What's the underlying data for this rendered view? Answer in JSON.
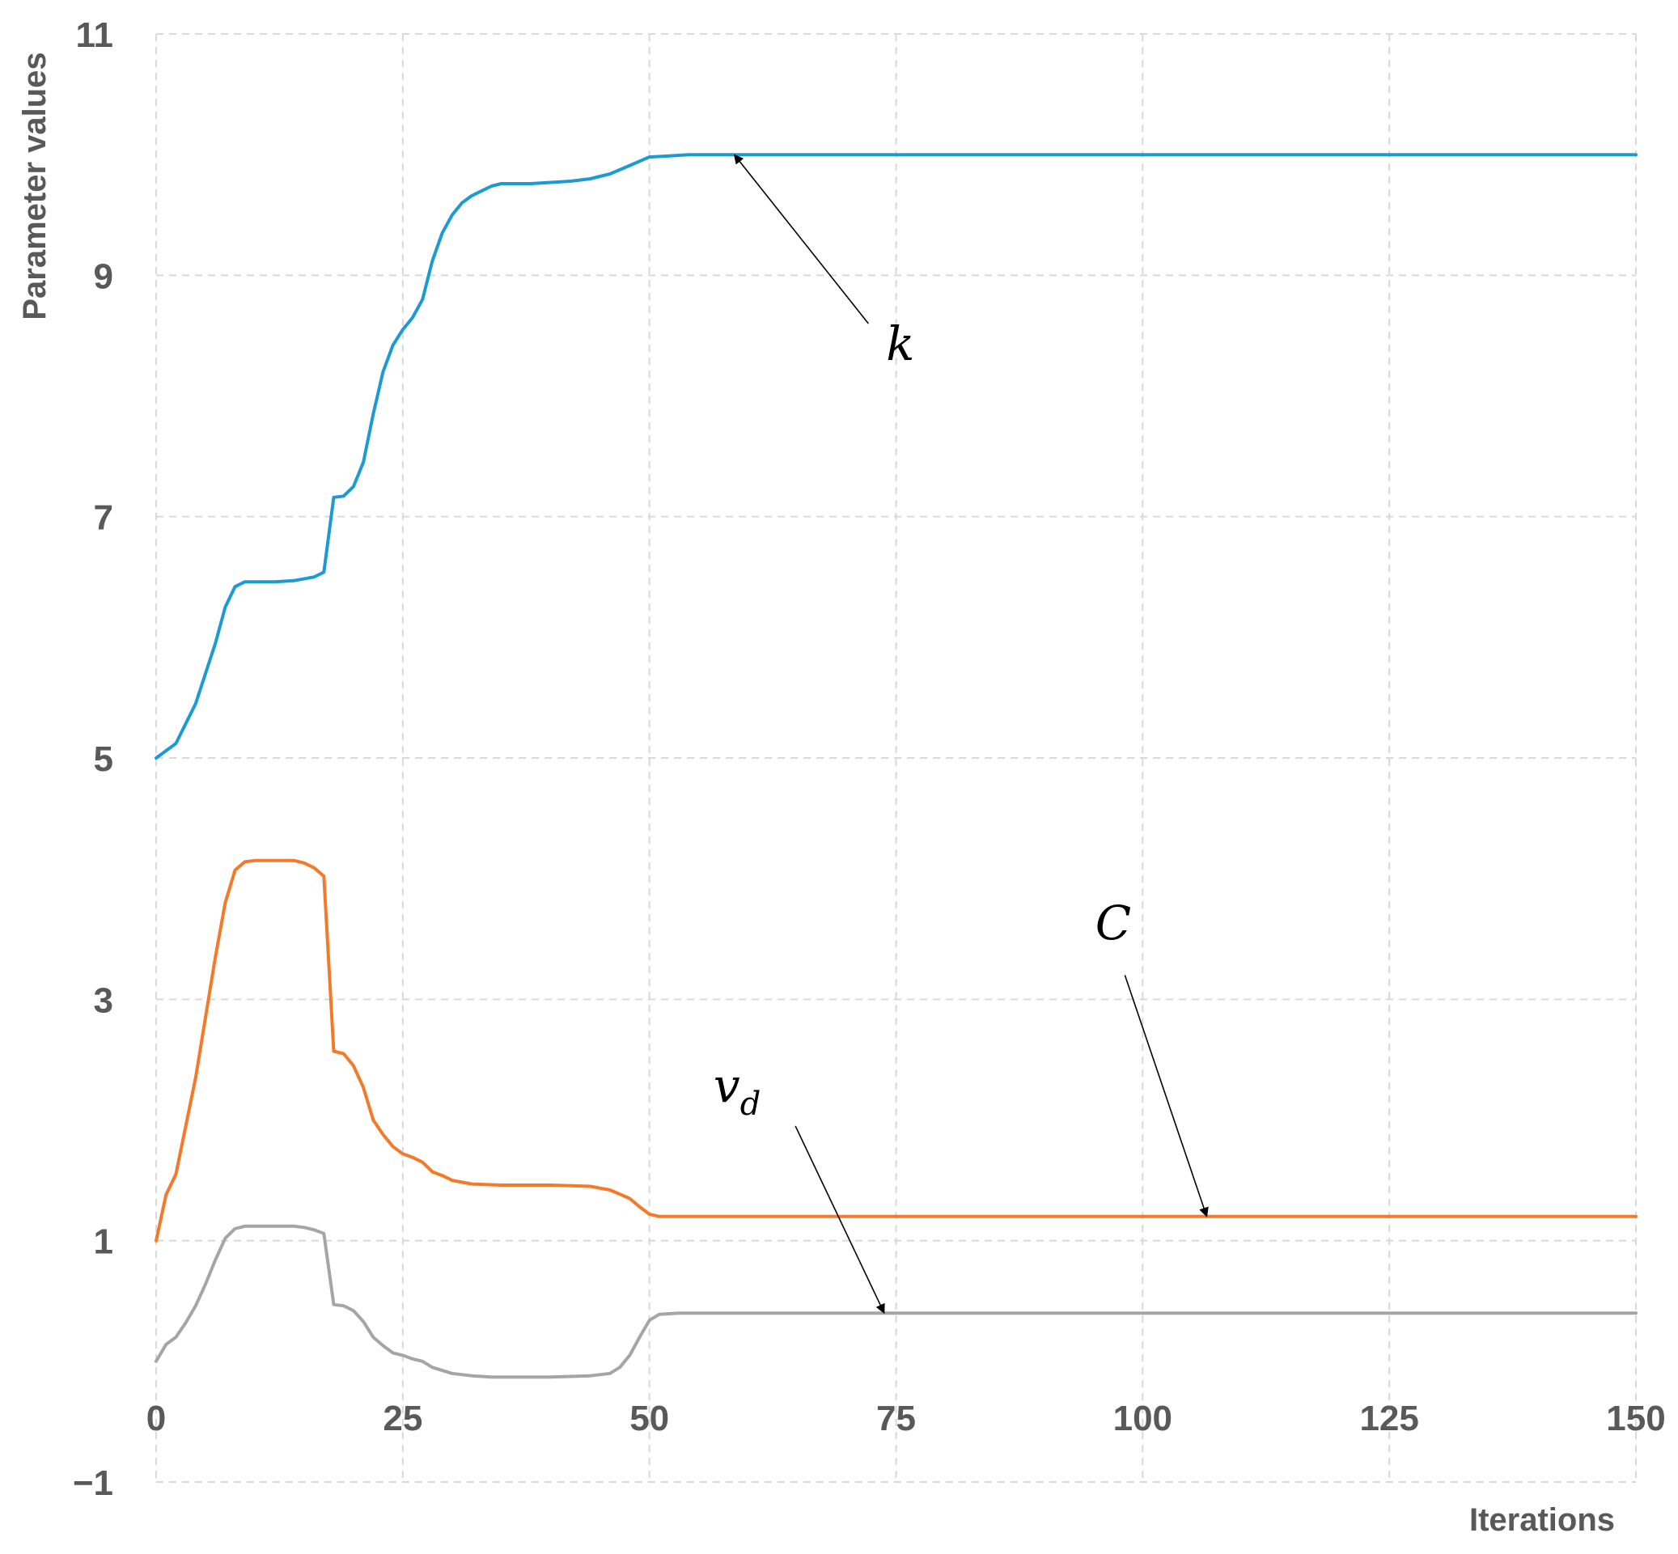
{
  "chart_data": {
    "type": "line",
    "xlabel": "Iterations",
    "ylabel": "Parameter values",
    "xlim": [
      0,
      150
    ],
    "ylim": [
      -1,
      11
    ],
    "xticks": [
      "0",
      "25",
      "50",
      "75",
      "100",
      "125",
      "150"
    ],
    "yticks": [
      "11",
      "9",
      "7",
      "5",
      "3",
      "1",
      "−1"
    ],
    "grid": true,
    "legend": "none",
    "series": [
      {
        "name": "k",
        "color": "#1b9ad6",
        "points": [
          [
            0,
            5.0
          ],
          [
            2,
            5.12
          ],
          [
            4,
            5.45
          ],
          [
            6,
            5.95
          ],
          [
            7,
            6.25
          ],
          [
            8,
            6.42
          ],
          [
            9,
            6.46
          ],
          [
            10,
            6.46
          ],
          [
            12,
            6.46
          ],
          [
            14,
            6.47
          ],
          [
            16,
            6.5
          ],
          [
            17,
            6.54
          ],
          [
            18,
            7.16
          ],
          [
            19,
            7.17
          ],
          [
            20,
            7.25
          ],
          [
            21,
            7.45
          ],
          [
            22,
            7.85
          ],
          [
            23,
            8.2
          ],
          [
            24,
            8.42
          ],
          [
            25,
            8.55
          ],
          [
            26,
            8.65
          ],
          [
            27,
            8.8
          ],
          [
            28,
            9.12
          ],
          [
            29,
            9.35
          ],
          [
            30,
            9.5
          ],
          [
            31,
            9.6
          ],
          [
            32,
            9.66
          ],
          [
            33,
            9.7
          ],
          [
            34,
            9.74
          ],
          [
            35,
            9.76
          ],
          [
            38,
            9.76
          ],
          [
            40,
            9.77
          ],
          [
            42,
            9.78
          ],
          [
            44,
            9.8
          ],
          [
            46,
            9.84
          ],
          [
            48,
            9.91
          ],
          [
            50,
            9.98
          ],
          [
            52,
            9.99
          ],
          [
            54,
            10.0
          ],
          [
            60,
            10.0
          ],
          [
            150,
            10.0
          ]
        ]
      },
      {
        "name": "C",
        "color": "#f47a2a",
        "points": [
          [
            0,
            1.0
          ],
          [
            1,
            1.38
          ],
          [
            2,
            1.55
          ],
          [
            3,
            1.95
          ],
          [
            4,
            2.35
          ],
          [
            5,
            2.85
          ],
          [
            6,
            3.35
          ],
          [
            7,
            3.8
          ],
          [
            8,
            4.07
          ],
          [
            9,
            4.14
          ],
          [
            10,
            4.15
          ],
          [
            14,
            4.15
          ],
          [
            15,
            4.13
          ],
          [
            16,
            4.09
          ],
          [
            17,
            4.02
          ],
          [
            18,
            2.57
          ],
          [
            19,
            2.55
          ],
          [
            20,
            2.45
          ],
          [
            21,
            2.27
          ],
          [
            22,
            2.0
          ],
          [
            23,
            1.88
          ],
          [
            24,
            1.78
          ],
          [
            25,
            1.72
          ],
          [
            26,
            1.69
          ],
          [
            27,
            1.65
          ],
          [
            28,
            1.57
          ],
          [
            29,
            1.54
          ],
          [
            30,
            1.5
          ],
          [
            32,
            1.47
          ],
          [
            35,
            1.46
          ],
          [
            40,
            1.46
          ],
          [
            44,
            1.45
          ],
          [
            46,
            1.42
          ],
          [
            48,
            1.35
          ],
          [
            49,
            1.28
          ],
          [
            50,
            1.22
          ],
          [
            51,
            1.2
          ],
          [
            53,
            1.2
          ],
          [
            60,
            1.2
          ],
          [
            150,
            1.2
          ]
        ]
      },
      {
        "name": "v_d",
        "color": "#a5a5a5",
        "points": [
          [
            0,
            0.0
          ],
          [
            1,
            0.14
          ],
          [
            2,
            0.2
          ],
          [
            3,
            0.32
          ],
          [
            4,
            0.46
          ],
          [
            5,
            0.64
          ],
          [
            6,
            0.84
          ],
          [
            7,
            1.02
          ],
          [
            8,
            1.1
          ],
          [
            9,
            1.12
          ],
          [
            10,
            1.12
          ],
          [
            14,
            1.12
          ],
          [
            15,
            1.11
          ],
          [
            16,
            1.09
          ],
          [
            17,
            1.06
          ],
          [
            18,
            0.47
          ],
          [
            19,
            0.46
          ],
          [
            20,
            0.42
          ],
          [
            21,
            0.33
          ],
          [
            22,
            0.2
          ],
          [
            23,
            0.13
          ],
          [
            24,
            0.07
          ],
          [
            25,
            0.05
          ],
          [
            26,
            0.02
          ],
          [
            27,
            0.0
          ],
          [
            28,
            -0.05
          ],
          [
            30,
            -0.1
          ],
          [
            32,
            -0.12
          ],
          [
            34,
            -0.13
          ],
          [
            40,
            -0.13
          ],
          [
            44,
            -0.12
          ],
          [
            46,
            -0.1
          ],
          [
            47,
            -0.05
          ],
          [
            48,
            0.05
          ],
          [
            49,
            0.2
          ],
          [
            50,
            0.34
          ],
          [
            51,
            0.39
          ],
          [
            53,
            0.4
          ],
          [
            60,
            0.4
          ],
          [
            150,
            0.4
          ]
        ]
      }
    ],
    "annotations": [
      {
        "name": "k",
        "text": "k",
        "sub": "",
        "text_at": [
          74,
          8.3
        ],
        "arrow_to": [
          58.6,
          10.0
        ],
        "arrow_from": [
          72.2,
          8.6
        ]
      },
      {
        "name": "C",
        "text": "C",
        "sub": "",
        "text_at": [
          95.2,
          3.5
        ],
        "arrow_to": [
          106.5,
          1.2
        ],
        "arrow_from": [
          98.2,
          3.2
        ]
      },
      {
        "name": "v_d",
        "text": "v",
        "sub": "d",
        "text_at": [
          56.5,
          2.15
        ],
        "arrow_to": [
          73.8,
          0.4
        ],
        "arrow_from": [
          64.8,
          1.95
        ]
      }
    ]
  }
}
